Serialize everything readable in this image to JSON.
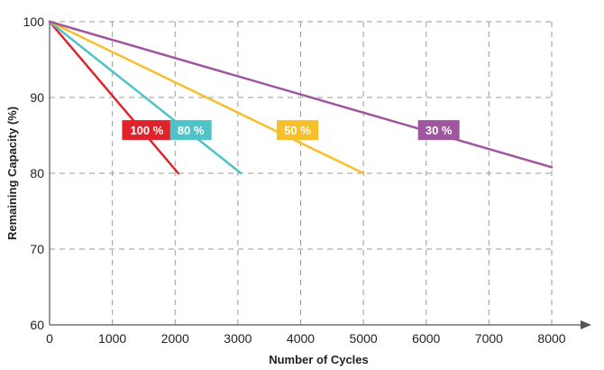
{
  "chart_data": {
    "type": "line",
    "xlabel": "Number of Cycles",
    "ylabel": "Remaining Capacity (%)",
    "xlim": [
      0,
      8000
    ],
    "ylim": [
      60,
      100
    ],
    "x_ticks": [
      "0",
      "1000",
      "2000",
      "3000",
      "4000",
      "5000",
      "6000",
      "7000",
      "8000"
    ],
    "y_ticks": [
      "60",
      "70",
      "80",
      "90",
      "100"
    ],
    "grid": true,
    "series": [
      {
        "name": "100 %",
        "color": "#e0222b",
        "points": [
          [
            0,
            100
          ],
          [
            2050,
            80
          ]
        ]
      },
      {
        "name": "80 %",
        "color": "#4fc3c7",
        "points": [
          [
            0,
            100
          ],
          [
            3050,
            80
          ]
        ]
      },
      {
        "name": "50 %",
        "color": "#f7bf2a",
        "points": [
          [
            0,
            100
          ],
          [
            5000,
            80
          ]
        ]
      },
      {
        "name": "30 %",
        "color": "#a0559f",
        "points": [
          [
            0,
            100
          ],
          [
            8000,
            80.8
          ]
        ]
      }
    ]
  }
}
